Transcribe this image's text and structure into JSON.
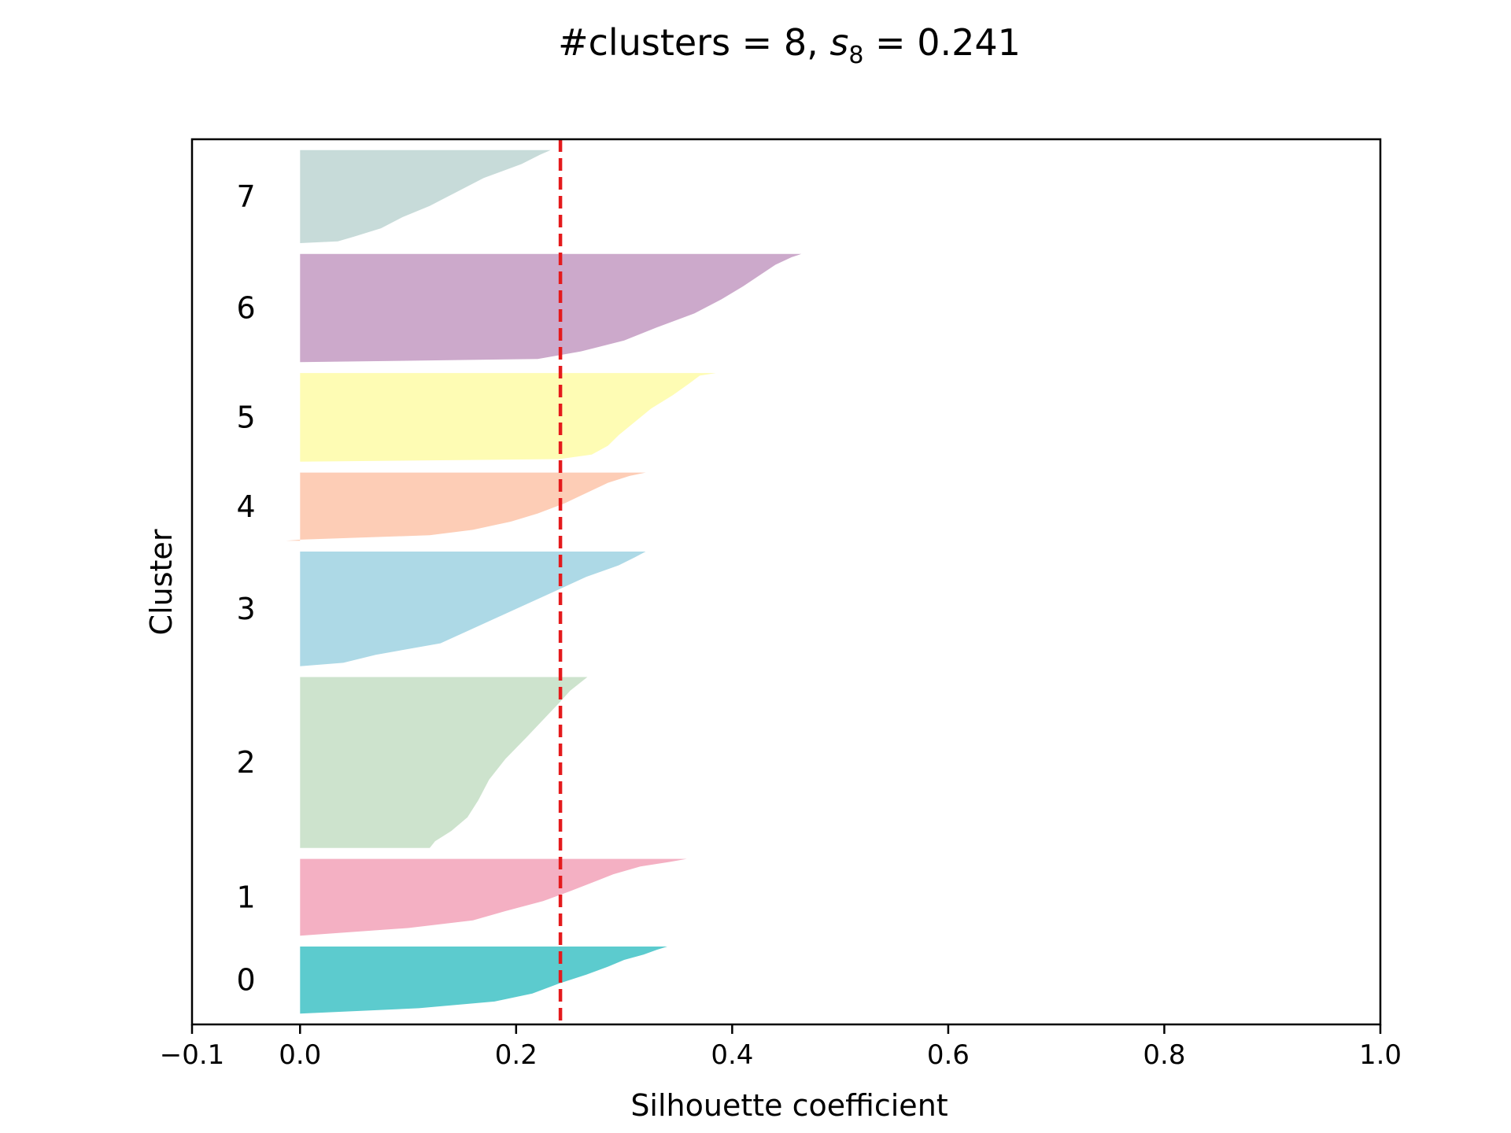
{
  "chart_data": {
    "type": "silhouette",
    "title": {
      "prefix": "#clusters = 8, ",
      "symbol": "s",
      "subscript": "8",
      "suffix": " = 0.241"
    },
    "xlabel": "Silhouette coefficient",
    "ylabel": "Cluster",
    "xlim": [
      -0.1,
      1.0
    ],
    "x_ticks": [
      {
        "value": -0.1,
        "label": "−0.1"
      },
      {
        "value": 0.0,
        "label": "0.0"
      },
      {
        "value": 0.2,
        "label": "0.2"
      },
      {
        "value": 0.4,
        "label": "0.4"
      },
      {
        "value": 0.6,
        "label": "0.6"
      },
      {
        "value": 0.8,
        "label": "0.8"
      },
      {
        "value": 1.0,
        "label": "1.0"
      }
    ],
    "average_silhouette": 0.241,
    "average_line_color": "#e41a1c",
    "grid": false,
    "clusters": [
      {
        "label": "0",
        "color": "#5ccbce",
        "size": 62,
        "max": 0.34,
        "min": 0.0,
        "profile": [
          [
            0,
            0.34
          ],
          [
            0.05,
            0.33
          ],
          [
            0.12,
            0.318
          ],
          [
            0.2,
            0.3
          ],
          [
            0.3,
            0.285
          ],
          [
            0.42,
            0.265
          ],
          [
            0.55,
            0.24
          ],
          [
            0.7,
            0.215
          ],
          [
            0.82,
            0.18
          ],
          [
            0.92,
            0.11
          ],
          [
            1,
            0.0
          ]
        ]
      },
      {
        "label": "1",
        "color": "#f4b0c3",
        "size": 71,
        "max": 0.358,
        "min": 0.0,
        "profile": [
          [
            0,
            0.358
          ],
          [
            0.04,
            0.342
          ],
          [
            0.1,
            0.315
          ],
          [
            0.2,
            0.29
          ],
          [
            0.3,
            0.272
          ],
          [
            0.42,
            0.25
          ],
          [
            0.55,
            0.225
          ],
          [
            0.68,
            0.19
          ],
          [
            0.8,
            0.16
          ],
          [
            0.9,
            0.1
          ],
          [
            1,
            0.0
          ]
        ]
      },
      {
        "label": "2",
        "color": "#cde3cd",
        "size": 158,
        "max": 0.266,
        "min": 0.12,
        "profile": [
          [
            0,
            0.266
          ],
          [
            0.03,
            0.26
          ],
          [
            0.08,
            0.25
          ],
          [
            0.15,
            0.24
          ],
          [
            0.25,
            0.225
          ],
          [
            0.35,
            0.21
          ],
          [
            0.48,
            0.19
          ],
          [
            0.6,
            0.175
          ],
          [
            0.72,
            0.165
          ],
          [
            0.82,
            0.155
          ],
          [
            0.9,
            0.14
          ],
          [
            0.96,
            0.125
          ],
          [
            1,
            0.12
          ]
        ]
      },
      {
        "label": "3",
        "color": "#add9e6",
        "size": 106,
        "max": 0.32,
        "min": 0.0,
        "profile": [
          [
            0,
            0.32
          ],
          [
            0.05,
            0.31
          ],
          [
            0.12,
            0.295
          ],
          [
            0.22,
            0.265
          ],
          [
            0.35,
            0.235
          ],
          [
            0.5,
            0.2
          ],
          [
            0.65,
            0.165
          ],
          [
            0.8,
            0.13
          ],
          [
            0.9,
            0.07
          ],
          [
            0.97,
            0.04
          ],
          [
            1,
            0.0
          ]
        ]
      },
      {
        "label": "4",
        "color": "#fdcdb6",
        "size": 63,
        "max": 0.32,
        "min": -0.013,
        "profile": [
          [
            0,
            0.32
          ],
          [
            0.05,
            0.305
          ],
          [
            0.15,
            0.285
          ],
          [
            0.3,
            0.265
          ],
          [
            0.45,
            0.245
          ],
          [
            0.6,
            0.22
          ],
          [
            0.72,
            0.195
          ],
          [
            0.84,
            0.16
          ],
          [
            0.92,
            0.12
          ],
          [
            0.985,
            0.0
          ],
          [
            1,
            -0.013
          ]
        ]
      },
      {
        "label": "5",
        "color": "#fefcb4",
        "size": 82,
        "max": 0.385,
        "min": 0.0,
        "profile": [
          [
            0,
            0.385
          ],
          [
            0.03,
            0.37
          ],
          [
            0.12,
            0.36
          ],
          [
            0.25,
            0.345
          ],
          [
            0.4,
            0.325
          ],
          [
            0.55,
            0.31
          ],
          [
            0.7,
            0.295
          ],
          [
            0.82,
            0.285
          ],
          [
            0.92,
            0.27
          ],
          [
            0.97,
            0.24
          ],
          [
            1,
            0.0
          ]
        ]
      },
      {
        "label": "6",
        "color": "#cca9cb",
        "size": 100,
        "max": 0.464,
        "min": 0.0,
        "profile": [
          [
            0,
            0.464
          ],
          [
            0.03,
            0.455
          ],
          [
            0.1,
            0.44
          ],
          [
            0.2,
            0.425
          ],
          [
            0.3,
            0.41
          ],
          [
            0.42,
            0.39
          ],
          [
            0.55,
            0.365
          ],
          [
            0.68,
            0.33
          ],
          [
            0.8,
            0.3
          ],
          [
            0.9,
            0.26
          ],
          [
            0.97,
            0.22
          ],
          [
            1,
            0.0
          ]
        ]
      },
      {
        "label": "7",
        "color": "#c7dbd9",
        "size": 86,
        "max": 0.232,
        "min": 0.0,
        "profile": [
          [
            0,
            0.232
          ],
          [
            0.05,
            0.222
          ],
          [
            0.15,
            0.205
          ],
          [
            0.3,
            0.17
          ],
          [
            0.45,
            0.145
          ],
          [
            0.6,
            0.12
          ],
          [
            0.72,
            0.095
          ],
          [
            0.84,
            0.075
          ],
          [
            0.93,
            0.05
          ],
          [
            0.98,
            0.035
          ],
          [
            1,
            0.0
          ]
        ]
      }
    ]
  }
}
